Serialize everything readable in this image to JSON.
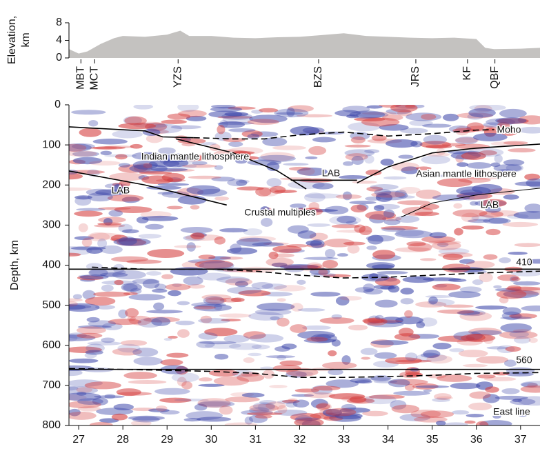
{
  "chart_data": [
    {
      "type": "area",
      "ylabel_lines": [
        "Elevation,",
        "km"
      ],
      "color": "#c4c2c0",
      "xlim": [
        26.78,
        37.44
      ],
      "ylim": [
        0,
        8
      ],
      "yticks": [
        0,
        4,
        8
      ],
      "x": [
        26.78,
        27.0,
        27.2,
        27.5,
        27.8,
        28.0,
        28.5,
        29.0,
        29.3,
        29.5,
        30.0,
        30.5,
        31.0,
        31.5,
        32.0,
        32.5,
        33.0,
        33.5,
        34.0,
        34.5,
        35.0,
        35.5,
        36.0,
        36.2,
        36.4,
        37.0,
        37.44
      ],
      "values": [
        2.0,
        1.0,
        1.5,
        3.2,
        4.5,
        5.0,
        4.8,
        5.3,
        6.2,
        5.0,
        5.0,
        4.6,
        4.5,
        4.7,
        4.8,
        5.2,
        5.6,
        5.0,
        4.8,
        4.6,
        4.5,
        4.6,
        4.3,
        2.3,
        2.0,
        2.1,
        2.3
      ],
      "markers": {
        "labels": [
          "MBT",
          "MCT",
          "YZS",
          "BZS",
          "JRS",
          "KF",
          "QBF"
        ],
        "x": [
          27.05,
          27.36,
          29.25,
          32.43,
          34.63,
          35.8,
          36.42
        ]
      }
    },
    {
      "type": "line",
      "ylabel": "Depth, km",
      "xlim": [
        26.78,
        37.44
      ],
      "ylim": [
        0,
        800
      ],
      "inverted": true,
      "xticks": [
        27,
        28,
        29,
        30,
        31,
        32,
        33,
        34,
        35,
        36,
        37
      ],
      "yticks": [
        0,
        100,
        200,
        300,
        400,
        500,
        600,
        700,
        800
      ],
      "series": [
        {
          "style": "solid",
          "x": [
            26.78,
            28.5,
            28.9,
            29.6
          ],
          "values": [
            55,
            65,
            80,
            82
          ]
        },
        {
          "style": "dashed",
          "x": [
            29.6,
            30.5,
            31.2,
            32.0,
            33.0,
            34.0,
            35.0,
            36.0,
            36.4
          ],
          "values": [
            82,
            85,
            85,
            75,
            68,
            78,
            72,
            63,
            62
          ]
        },
        {
          "style": "solid",
          "x": [
            29.2,
            30.5,
            31.5,
            32.15
          ],
          "values": [
            85,
            120,
            165,
            210
          ]
        },
        {
          "style": "solid",
          "x": [
            26.78,
            28.5,
            30.35
          ],
          "values": [
            165,
            200,
            250
          ]
        },
        {
          "style": "solid",
          "x": [
            31.8,
            33.3
          ],
          "values": [
            188,
            188
          ]
        },
        {
          "style": "solid",
          "x": [
            33.3,
            34.0,
            35.0,
            36.0,
            37.44
          ],
          "values": [
            195,
            155,
            120,
            108,
            98
          ]
        },
        {
          "style": "thin",
          "x": [
            34.3,
            35.0,
            36.0,
            37.44
          ],
          "values": [
            280,
            245,
            225,
            208
          ]
        },
        {
          "style": "solid",
          "x": [
            26.78,
            37.44
          ],
          "values": [
            410,
            410
          ]
        },
        {
          "style": "dashed",
          "x": [
            27.3,
            28.5,
            30.0,
            31.0,
            32.0,
            33.0,
            34.0,
            35.0,
            36.0,
            37.44
          ],
          "values": [
            405,
            410,
            410,
            415,
            425,
            432,
            430,
            425,
            420,
            415
          ]
        },
        {
          "style": "solid",
          "x": [
            26.78,
            37.44
          ],
          "values": [
            660,
            660
          ]
        },
        {
          "style": "dashed",
          "x": [
            26.78,
            28.0,
            30.0,
            31.0,
            32.0,
            33.0,
            34.0,
            35.0,
            36.0,
            37.44
          ],
          "values": [
            658,
            660,
            665,
            670,
            680,
            680,
            678,
            675,
            670,
            668
          ]
        }
      ],
      "annotations": [
        "Moho",
        "Indian mantle lithosphere",
        "LAB",
        "LAB",
        "Asian mantle lithospere",
        "LAB",
        "Crustal multiples",
        "410",
        "560",
        "East line"
      ]
    }
  ]
}
